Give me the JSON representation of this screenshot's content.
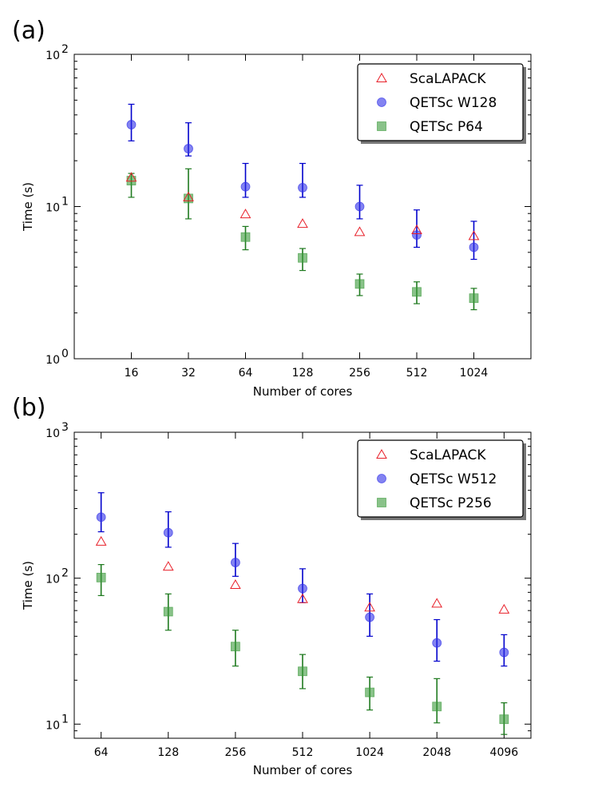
{
  "chart_data": [
    {
      "panel": "(a)",
      "type": "scatter",
      "xlabel": "Number of cores",
      "ylabel": "Time (s)",
      "yscale": "log",
      "ylim": [
        1,
        100
      ],
      "x": [
        16,
        32,
        64,
        128,
        256,
        512,
        1024
      ],
      "x_tick_labels": [
        "16",
        "32",
        "64",
        "128",
        "256",
        "512",
        "1024"
      ],
      "y_tick_labels": [
        {
          "value": 1,
          "base": "10",
          "exp": "0"
        },
        {
          "value": 10,
          "base": "10",
          "exp": "1"
        },
        {
          "value": 100,
          "base": "10",
          "exp": "2"
        }
      ],
      "legend_position": "top-right",
      "series": [
        {
          "name": "ScaLAPACK",
          "marker": "triangle",
          "color": "#e8202a",
          "values": [
            15.5,
            11.5,
            8.9,
            7.7,
            6.8,
            7.0,
            6.4
          ],
          "errors": null
        },
        {
          "name": "QETSc W128",
          "marker": "circle",
          "color": "#3030e8",
          "values": [
            34.5,
            24.0,
            13.5,
            13.3,
            10.0,
            6.5,
            5.4
          ],
          "err_low": [
            27,
            21.5,
            11.5,
            11.5,
            8.3,
            5.4,
            4.5
          ],
          "err_high": [
            47,
            35.5,
            19.2,
            19.2,
            13.8,
            9.5,
            8.0
          ]
        },
        {
          "name": "QETSc P64",
          "marker": "square",
          "color": "#3a9a3a",
          "values": [
            14.8,
            11.3,
            6.3,
            4.6,
            3.1,
            2.75,
            2.5
          ],
          "err_low": [
            11.5,
            8.3,
            5.2,
            3.8,
            2.6,
            2.3,
            2.1
          ],
          "err_high": [
            16.5,
            17.7,
            7.4,
            5.3,
            3.6,
            3.2,
            2.9
          ]
        }
      ]
    },
    {
      "panel": "(b)",
      "type": "scatter",
      "xlabel": "Number of cores",
      "ylabel": "Time (s)",
      "yscale": "log",
      "ylim": [
        8,
        1000
      ],
      "x": [
        64,
        128,
        256,
        512,
        1024,
        2048,
        4096
      ],
      "x_tick_labels": [
        "64",
        "128",
        "256",
        "512",
        "1024",
        "2048",
        "4096"
      ],
      "y_tick_labels": [
        {
          "value": 10,
          "base": "10",
          "exp": "1"
        },
        {
          "value": 100,
          "base": "10",
          "exp": "2"
        },
        {
          "value": 1000,
          "base": "10",
          "exp": "3"
        }
      ],
      "legend_position": "top-right",
      "series": [
        {
          "name": "ScaLAPACK",
          "marker": "triangle",
          "color": "#e8202a",
          "values": [
            178,
            120,
            90,
            72,
            63,
            67,
            61
          ],
          "errors": null
        },
        {
          "name": "QETSc W512",
          "marker": "circle",
          "color": "#3030e8",
          "values": [
            262,
            205,
            128,
            85,
            54,
            36,
            31
          ],
          "err_low": [
            208,
            163,
            103,
            68,
            40,
            27,
            25
          ],
          "err_high": [
            385,
            285,
            173,
            116,
            78,
            52,
            41
          ]
        },
        {
          "name": "QETSc P256",
          "marker": "square",
          "color": "#3a9a3a",
          "values": [
            101,
            59,
            34,
            23,
            16.5,
            13.2,
            10.8
          ],
          "err_low": [
            76,
            44,
            25,
            17.5,
            12.5,
            10.2,
            8.5
          ],
          "err_high": [
            124,
            78,
            44,
            30,
            21,
            20.5,
            14
          ]
        }
      ]
    }
  ]
}
